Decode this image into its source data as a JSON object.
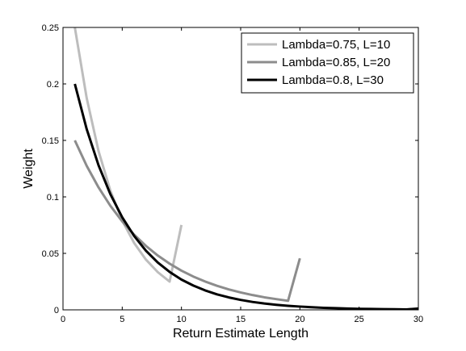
{
  "chart_data": {
    "type": "line",
    "xlabel": "Return Estimate Length",
    "ylabel": "Weight",
    "xlim": [
      0,
      30
    ],
    "ylim": [
      0,
      0.25
    ],
    "xticks": [
      0,
      5,
      10,
      15,
      20,
      25,
      30
    ],
    "yticks": [
      0,
      0.05,
      0.1,
      0.15,
      0.2,
      0.25
    ],
    "xtick_labels": [
      "0",
      "5",
      "10",
      "15",
      "20",
      "25",
      "30"
    ],
    "ytick_labels": [
      "0",
      "0.05",
      "0.1",
      "0.15",
      "0.2",
      "0.25"
    ],
    "grid": false,
    "legend_position": "top-right",
    "series": [
      {
        "name": "Lambda=0.75, L=10",
        "color": "#bdbdbd",
        "x": [
          1,
          2,
          3,
          4,
          5,
          6,
          7,
          8,
          9,
          10
        ],
        "y": [
          0.25,
          0.1875,
          0.1406,
          0.1055,
          0.0791,
          0.0593,
          0.0445,
          0.0334,
          0.025,
          0.0751
        ]
      },
      {
        "name": "Lambda=0.85, L=20",
        "color": "#8c8c8c",
        "x": [
          1,
          2,
          3,
          4,
          5,
          6,
          7,
          8,
          9,
          10,
          11,
          12,
          13,
          14,
          15,
          16,
          17,
          18,
          19,
          20
        ],
        "y": [
          0.15,
          0.1275,
          0.1084,
          0.0921,
          0.0783,
          0.0666,
          0.0566,
          0.0481,
          0.0409,
          0.0347,
          0.0295,
          0.0251,
          0.0213,
          0.0181,
          0.0154,
          0.0131,
          0.0111,
          0.0095,
          0.008,
          0.0456
        ]
      },
      {
        "name": "Lambda=0.8, L=30",
        "color": "#000000",
        "x": [
          1,
          2,
          3,
          4,
          5,
          6,
          7,
          8,
          9,
          10,
          11,
          12,
          13,
          14,
          15,
          16,
          17,
          18,
          19,
          20,
          21,
          22,
          23,
          24,
          25,
          26,
          27,
          28,
          29,
          30
        ],
        "y": [
          0.2,
          0.16,
          0.128,
          0.1024,
          0.0819,
          0.0655,
          0.0524,
          0.0419,
          0.0336,
          0.0268,
          0.0215,
          0.0172,
          0.0137,
          0.011,
          0.0088,
          0.007,
          0.0056,
          0.0045,
          0.0036,
          0.0029,
          0.0023,
          0.0018,
          0.0015,
          0.0012,
          0.0009,
          0.0008,
          0.0006,
          0.0005,
          0.0004,
          0.0012
        ]
      }
    ]
  }
}
